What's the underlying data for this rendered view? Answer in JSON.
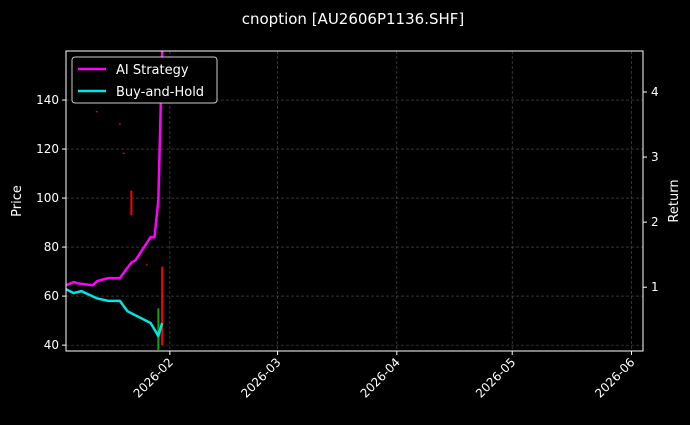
{
  "chart_data": {
    "type": "line",
    "title": "cnoption [AU2606P1136.SHF]",
    "xlabel": "",
    "ylabel": "Price",
    "ylabel_right": "Return",
    "xlim": [
      "2026-01-05",
      "2026-06-04"
    ],
    "ylim": [
      37.6,
      160
    ],
    "ylim_right": [
      0.02,
      4.63
    ],
    "x_ticks": [
      "2026-02",
      "2026-03",
      "2026-04",
      "2026-05",
      "2026-06"
    ],
    "y_ticks": [
      40,
      60,
      80,
      100,
      120,
      140
    ],
    "y_ticks_right": [
      1,
      2,
      3,
      4
    ],
    "grid": true,
    "legend_position": "top-left",
    "series": [
      {
        "name": "AI Strategy",
        "axis": "right",
        "color": "#ff00ff",
        "x": [
          "2026-01-05",
          "2026-01-07",
          "2026-01-08",
          "2026-01-12",
          "2026-01-13",
          "2026-01-14",
          "2026-01-16",
          "2026-01-19",
          "2026-01-22",
          "2026-01-23",
          "2026-01-27",
          "2026-01-28",
          "2026-01-29",
          "2026-01-30"
        ],
        "values": [
          1.03,
          1.08,
          1.06,
          1.03,
          1.09,
          1.11,
          1.14,
          1.14,
          1.38,
          1.41,
          1.77,
          1.77,
          2.33,
          4.7
        ]
      },
      {
        "name": "Buy-and-Hold",
        "axis": "right",
        "color": "#00e5e5",
        "x": [
          "2026-01-05",
          "2026-01-07",
          "2026-01-09",
          "2026-01-13",
          "2026-01-16",
          "2026-01-19",
          "2026-01-21",
          "2026-01-27",
          "2026-01-29",
          "2026-01-30"
        ],
        "values": [
          0.97,
          0.91,
          0.94,
          0.83,
          0.79,
          0.79,
          0.63,
          0.45,
          0.25,
          0.45
        ]
      }
    ],
    "candles": [
      {
        "date": "2026-01-13",
        "open": 135.5,
        "close": 135,
        "color": "#ff0000"
      },
      {
        "date": "2026-01-19",
        "open": 130.5,
        "close": 130,
        "color": "#ff0000"
      },
      {
        "date": "2026-01-20",
        "open": 118.5,
        "close": 118,
        "color": "#ff0000"
      },
      {
        "date": "2026-01-22",
        "open": 103,
        "close": 93,
        "color": "#ff0000"
      },
      {
        "date": "2026-01-26",
        "open": 73,
        "close": 72.5,
        "color": "#ff0000"
      },
      {
        "date": "2026-01-29",
        "open": 38,
        "close": 55,
        "color": "#00aa00"
      },
      {
        "date": "2026-01-30",
        "open": 72,
        "close": 40,
        "color": "#ff0000"
      }
    ]
  }
}
